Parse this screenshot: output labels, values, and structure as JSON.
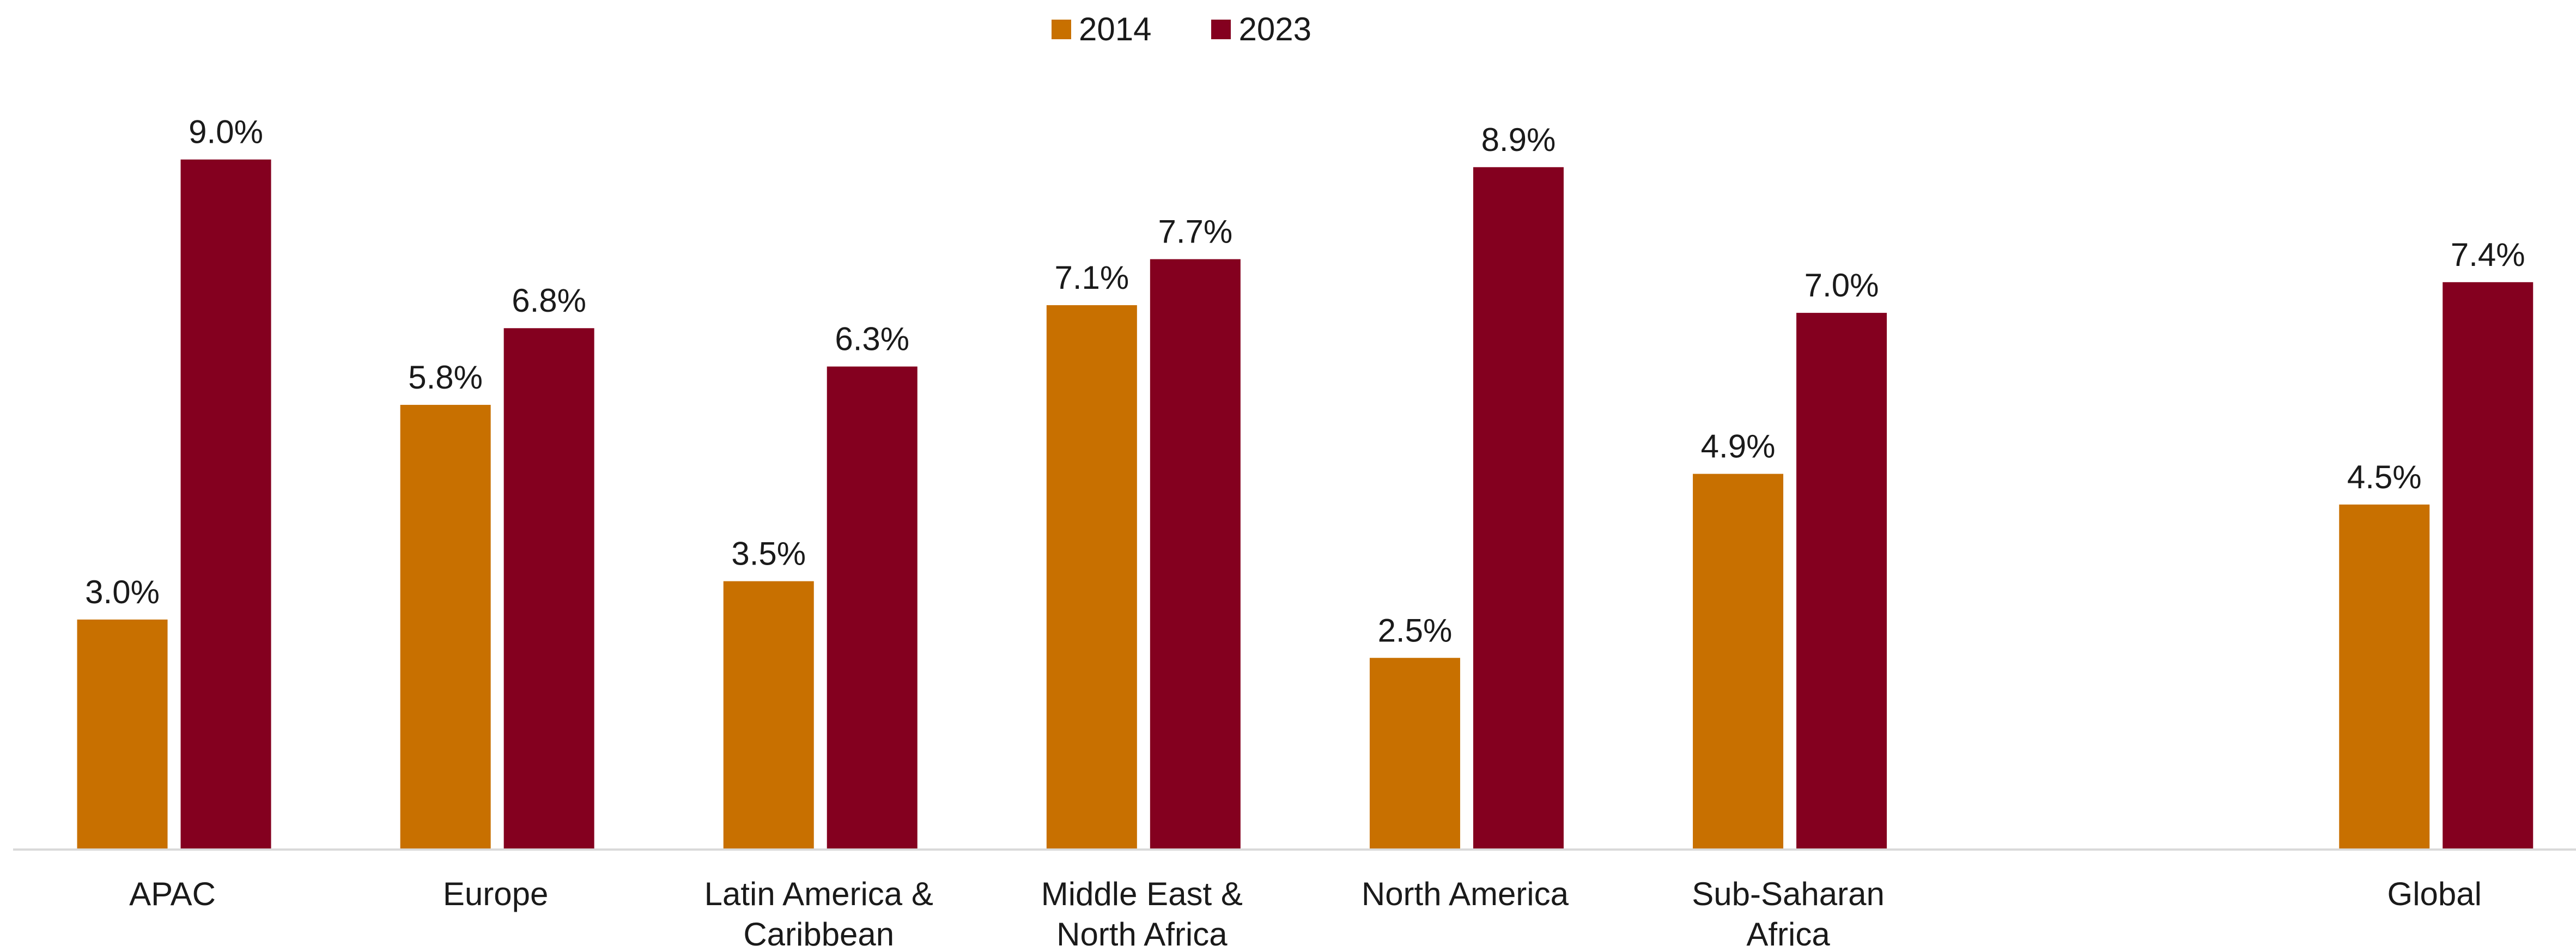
{
  "chart_data": {
    "type": "bar",
    "categories": [
      "APAC",
      "Europe",
      "Latin America & Caribbean",
      "Middle East & North Africa",
      "North America",
      "Sub-Saharan Africa",
      null,
      "Global"
    ],
    "series": [
      {
        "name": "2014",
        "color": "#c87000",
        "values": [
          3.0,
          5.8,
          3.5,
          7.1,
          2.5,
          4.9,
          null,
          4.5
        ],
        "value_labels": [
          "3.0%",
          "5.8%",
          "3.5%",
          "7.1%",
          "2.5%",
          "4.9%",
          null,
          "4.5%"
        ]
      },
      {
        "name": "2023",
        "color": "#84001f",
        "values": [
          9.0,
          6.8,
          6.3,
          7.7,
          8.9,
          7.0,
          null,
          7.4
        ],
        "value_labels": [
          "9.0%",
          "6.8%",
          "6.3%",
          "7.7%",
          "8.9%",
          "7.0%",
          null,
          "7.4%"
        ]
      }
    ],
    "ylim": [
      0,
      10
    ],
    "grid": false,
    "legend": "top"
  }
}
